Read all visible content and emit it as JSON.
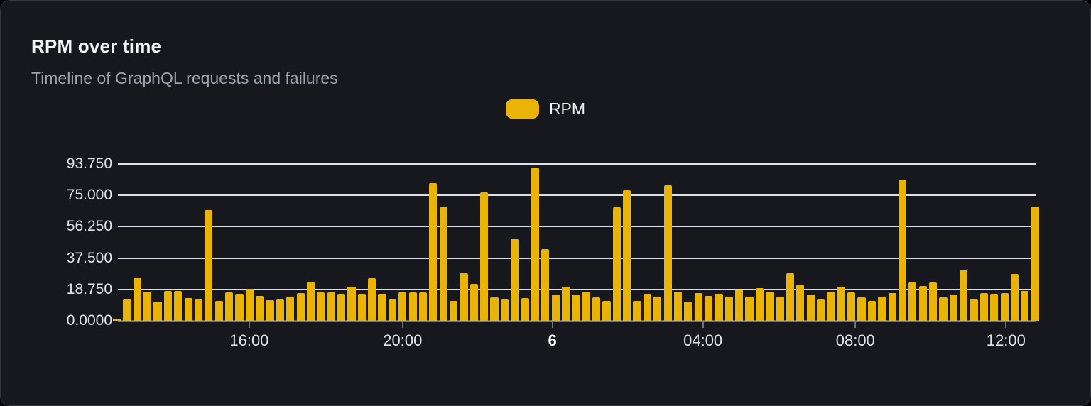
{
  "header": {
    "title": "RPM over time",
    "subtitle": "Timeline of GraphQL requests and failures"
  },
  "legend": {
    "label": "RPM"
  },
  "colors": {
    "bar": "#eab308",
    "card_bg": "#16181d",
    "card_border": "#33363c",
    "gridline": "#dcdfe9",
    "axis_line": "#70747c",
    "title": "#f4f5f6",
    "subtitle": "#9da3ab",
    "tick_label": "#e2e4e9"
  },
  "chart_data": {
    "type": "bar",
    "title": "RPM over time",
    "subtitle": "Timeline of GraphQL requests and failures",
    "ylabel": "",
    "xlabel": "",
    "ylim": [
      0,
      93.75
    ],
    "grid": true,
    "legend_position": "top-center",
    "y_ticks": [
      "93.750",
      "75.000",
      "56.250",
      "37.500",
      "18.750",
      "0.0000"
    ],
    "x_ticks": [
      {
        "label": "16:00",
        "pos": 0.143,
        "bold": false
      },
      {
        "label": "20:00",
        "pos": 0.31,
        "bold": false
      },
      {
        "label": "6",
        "pos": 0.473,
        "bold": true
      },
      {
        "label": "04:00",
        "pos": 0.637,
        "bold": false
      },
      {
        "label": "08:00",
        "pos": 0.803,
        "bold": false
      },
      {
        "label": "12:00",
        "pos": 0.967,
        "bold": false
      }
    ],
    "series": [
      {
        "name": "RPM",
        "values": [
          1.2,
          13,
          26,
          17.5,
          11.5,
          18,
          18,
          13.5,
          13,
          66,
          12,
          17,
          16,
          19,
          15,
          12.5,
          13,
          14.5,
          16.5,
          23.5,
          17,
          17,
          16,
          20.5,
          16,
          25.5,
          16,
          13,
          17,
          17,
          17,
          82.5,
          68,
          12,
          28.5,
          22,
          77,
          14,
          13,
          49,
          13.5,
          91.5,
          43,
          15.5,
          20.5,
          15.5,
          17.5,
          14,
          12,
          68,
          78,
          12,
          16,
          14.5,
          81,
          17.5,
          11.5,
          16.5,
          15,
          16,
          14.5,
          18.5,
          14.5,
          19.5,
          17.5,
          14.5,
          28.5,
          21.5,
          15.5,
          13,
          17,
          20.5,
          17,
          14,
          12,
          14.5,
          16.5,
          84.5,
          23,
          21,
          23,
          14,
          15.5,
          30,
          13,
          16.5,
          16,
          16.5,
          28,
          18,
          68.5
        ]
      }
    ]
  }
}
